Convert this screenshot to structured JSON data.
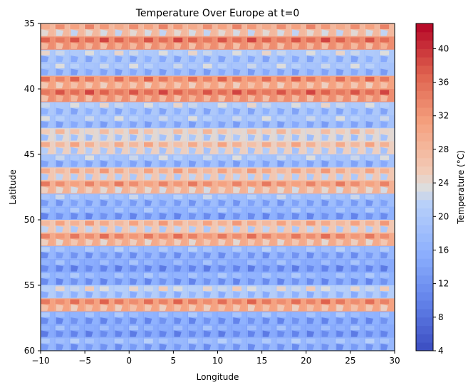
{
  "chart_data": {
    "type": "heatmap",
    "title": "Temperature Over Europe at t=0",
    "xlabel": "Longitude",
    "ylabel": "Latitude",
    "xlim": [
      -10,
      30
    ],
    "ylim": [
      35,
      60
    ],
    "y_inverted": true,
    "x_ticks": [
      -10,
      -5,
      0,
      5,
      10,
      15,
      20,
      25,
      30
    ],
    "x_tick_labels": [
      "−10",
      "−5",
      "0",
      "5",
      "10",
      "15",
      "20",
      "25",
      "30"
    ],
    "y_ticks": [
      35,
      40,
      45,
      50,
      55,
      60
    ],
    "y_tick_labels": [
      "35",
      "40",
      "45",
      "50",
      "55",
      "60"
    ],
    "colormap": "coolwarm",
    "colorbar": {
      "label": "Temperature (°C)",
      "range": [
        4,
        43
      ],
      "ticks": [
        4,
        8,
        12,
        16,
        20,
        24,
        28,
        32,
        36,
        40
      ],
      "tick_labels": [
        "4",
        "8",
        "12",
        "16",
        "20",
        "24",
        "28",
        "32",
        "36",
        "40"
      ],
      "colors": {
        "low": "#3b4cc0",
        "mid": "#dddddd",
        "high": "#b40426"
      }
    },
    "grid": {
      "columns": 24,
      "rows": 25
    },
    "row_base_temperatures_c": [
      28,
      33,
      20,
      19,
      31,
      33,
      20,
      19,
      24,
      25,
      19,
      26,
      29,
      18,
      16,
      26,
      30,
      17,
      15,
      16,
      21,
      31,
      16,
      15,
      17
    ],
    "grid_on": false
  }
}
